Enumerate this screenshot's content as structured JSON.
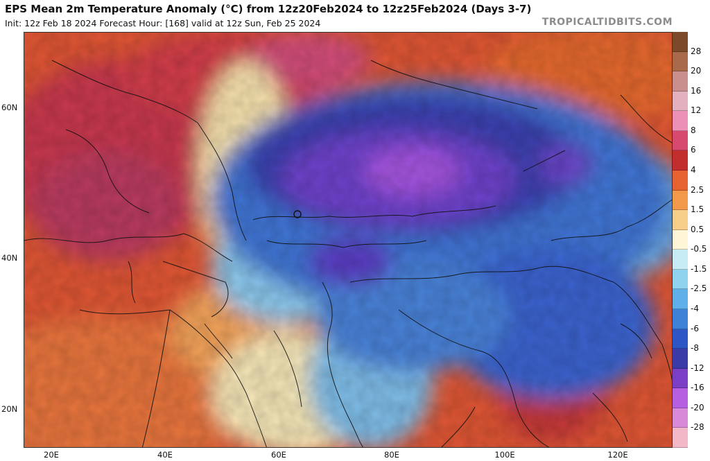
{
  "header": {
    "title": "EPS Mean 2m Temperature Anomaly (°C) from 12z20Feb2024 to 12z25Feb2024 (Days 3-7)",
    "subtitle": "Init: 12z Feb 18 2024   Forecast Hour: [168]   valid at 12z Sun, Feb 25 2024",
    "brand": "TROPICALTIDBITS.COM"
  },
  "map": {
    "lat_labels": [
      "60N",
      "40N",
      "20N"
    ],
    "lon_labels": [
      "20E",
      "40E",
      "60E",
      "80E",
      "100E",
      "120E"
    ],
    "colors": {
      "very_warm": "#c0405a",
      "warm": "#d0343a",
      "mild_warm": "#e8663a",
      "light_warm": "#f2a65a",
      "near_zero": "#f7e7b4",
      "light_cool": "#9fd2ee",
      "cool": "#4d8ed8",
      "cold": "#2f55c8",
      "very_cold": "#6a3fd0",
      "extreme_cold": "#a050e0"
    }
  },
  "colorbar": {
    "labels": [
      "28",
      "20",
      "16",
      "12",
      "8",
      "6",
      "4",
      "2.5",
      "1.5",
      "0.5",
      "-0.5",
      "-1.5",
      "-2.5",
      "-4",
      "-6",
      "-8",
      "-12",
      "-16",
      "-20",
      "-28"
    ],
    "colors": [
      "#7a4a2a",
      "#a86a4a",
      "#c98f8f",
      "#e3b0c0",
      "#ec90b8",
      "#d64a70",
      "#c22d2d",
      "#e6622e",
      "#f39a4a",
      "#f8cf8a",
      "#fff6d8",
      "#c7ecf5",
      "#8fd3ee",
      "#5fb0e8",
      "#3e82d8",
      "#2d56c4",
      "#3a3aa8",
      "#7a3fc4",
      "#b560e0",
      "#d68ad8",
      "#f2b8c8"
    ]
  }
}
